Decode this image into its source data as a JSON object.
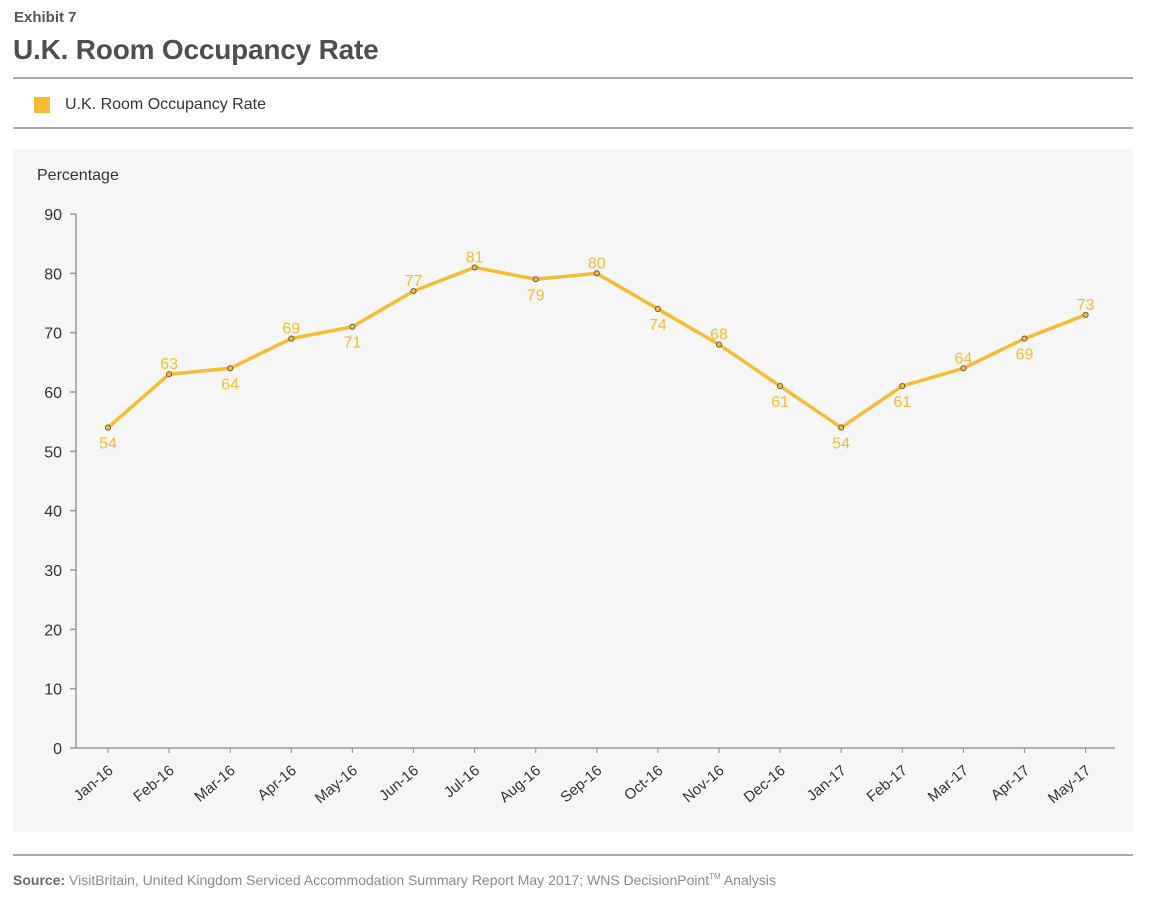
{
  "header": {
    "exhibit": "Exhibit 7",
    "title": "U.K. Room Occupancy Rate"
  },
  "legend": {
    "label": "U.K. Room Occupancy Rate",
    "color": "#f7bb36"
  },
  "source": {
    "label": "Source:",
    "text": "VisitBritain, United Kingdom Serviced Accommodation Summary Report May 2017; WNS DecisionPoint",
    "trademark": "TM",
    "suffix": "Analysis"
  },
  "chart_data": {
    "type": "line",
    "title": "U.K. Room Occupancy Rate",
    "xlabel": "",
    "ylabel": "Percentage",
    "ylim": [
      0,
      90
    ],
    "yticks": [
      0,
      10,
      20,
      30,
      40,
      50,
      60,
      70,
      80,
      90
    ],
    "grid": false,
    "legend_position": "top-left",
    "categories": [
      "Jan-16",
      "Feb-16",
      "Mar-16",
      "Apr-16",
      "May-16",
      "Jun-16",
      "Jul-16",
      "Aug-16",
      "Sep-16",
      "Oct-16",
      "Nov-16",
      "Dec-16",
      "Jan-17",
      "Feb-17",
      "Mar-17",
      "Apr-17",
      "May-17"
    ],
    "series": [
      {
        "name": "U.K. Room Occupancy Rate",
        "color": "#f7bb36",
        "values": [
          54,
          63,
          64,
          69,
          71,
          77,
          81,
          79,
          80,
          74,
          68,
          61,
          54,
          61,
          64,
          69,
          73
        ]
      }
    ]
  }
}
